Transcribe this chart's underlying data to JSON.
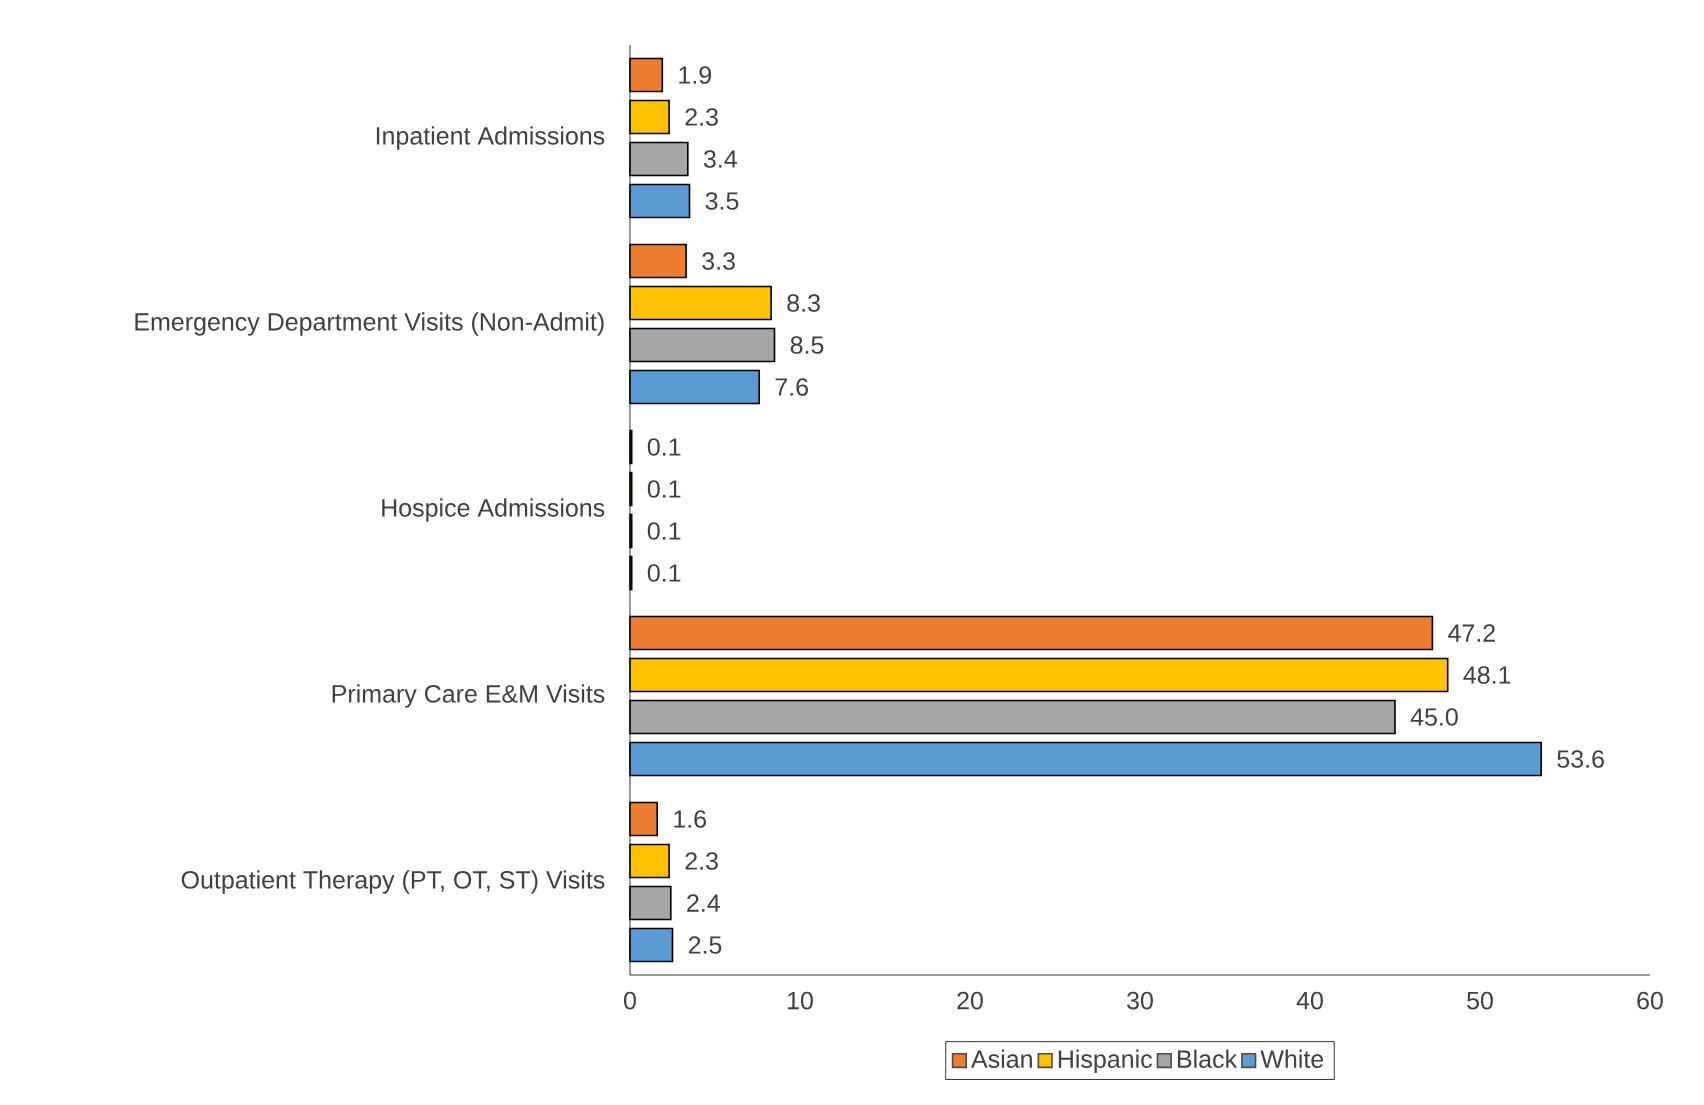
{
  "chart_data": {
    "type": "bar",
    "orientation": "horizontal",
    "categories": [
      "Inpatient Admissions",
      "Emergency Department Visits (Non-Admit)",
      "Hospice Admissions",
      "Primary Care E&M Visits",
      "Outpatient Therapy (PT, OT, ST) Visits"
    ],
    "series": [
      {
        "name": "Asian",
        "color": "#ed7d31",
        "values": [
          1.9,
          3.3,
          0.1,
          47.2,
          1.6
        ],
        "value_labels": [
          "1.9",
          "3.3",
          "0.1",
          "47.2",
          "1.6"
        ]
      },
      {
        "name": "Hispanic",
        "color": "#ffc000",
        "values": [
          2.3,
          8.3,
          0.1,
          48.1,
          2.3
        ],
        "value_labels": [
          "2.3",
          "8.3",
          "0.1",
          "48.1",
          "2.3"
        ]
      },
      {
        "name": "Black",
        "color": "#a5a5a5",
        "values": [
          3.4,
          8.5,
          0.1,
          45.0,
          2.4
        ],
        "value_labels": [
          "3.4",
          "8.5",
          "0.1",
          "45.0",
          "2.4"
        ]
      },
      {
        "name": "White",
        "color": "#5b9bd5",
        "values": [
          3.5,
          7.6,
          0.1,
          53.6,
          2.5
        ],
        "value_labels": [
          "3.5",
          "7.6",
          "0.1",
          "53.6",
          "2.5"
        ]
      }
    ],
    "xlim": [
      0,
      60
    ],
    "xticks": [
      0,
      10,
      20,
      30,
      40,
      50,
      60
    ],
    "grid": false,
    "legend": "bottom"
  }
}
